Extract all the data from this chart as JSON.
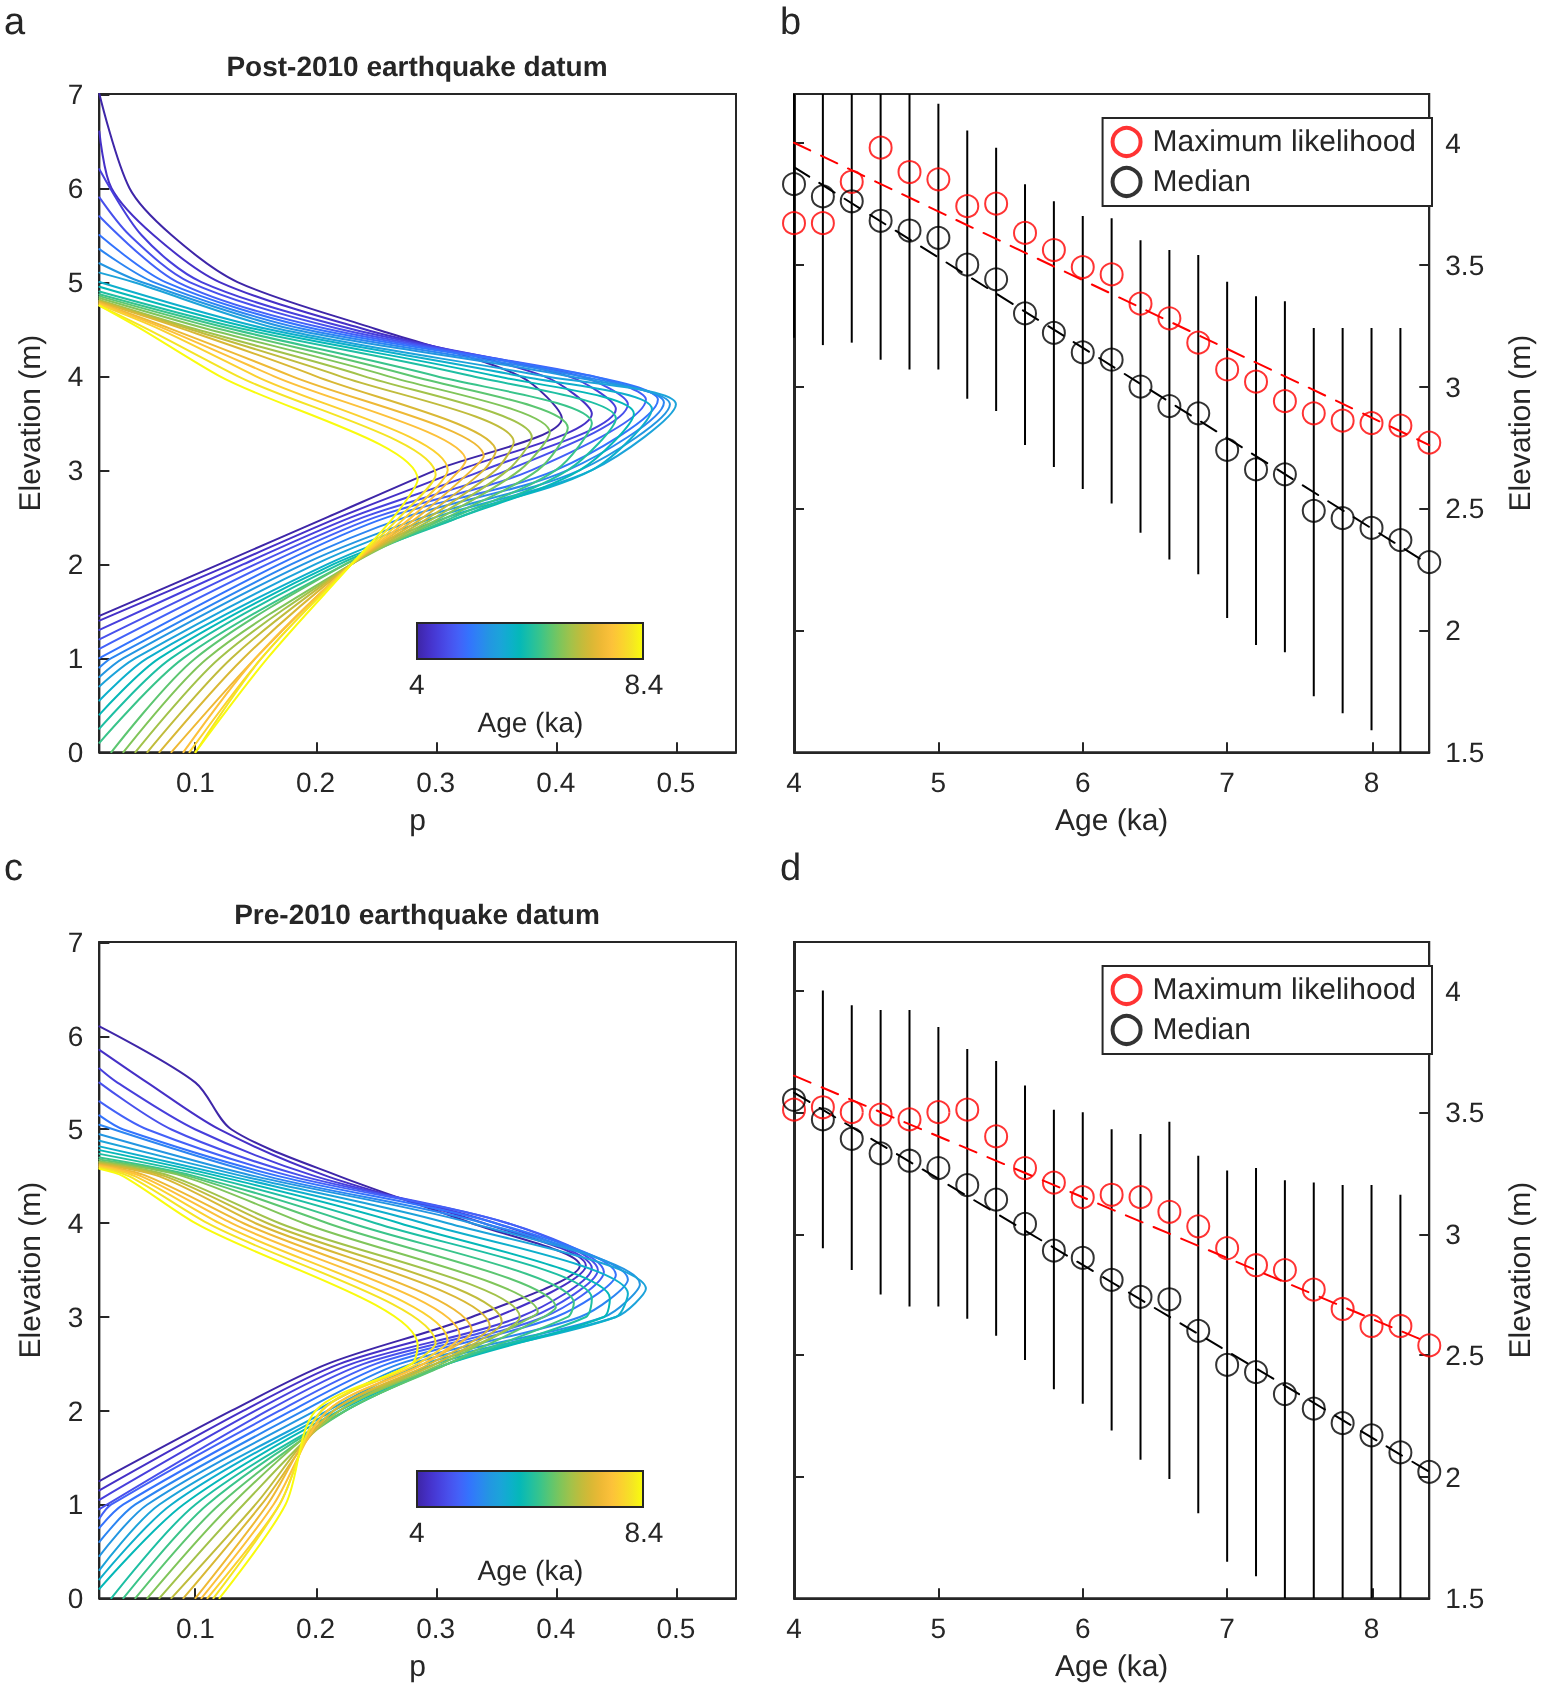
{
  "chart_data": [
    {
      "type": "line",
      "title": "Post-2010 earthquake datum",
      "annotations": [
        "a",
        "4",
        "8.4"
      ],
      "xlabel": "p",
      "ylabel": "Elevation (m)",
      "xlim": [
        0.02,
        0.55
      ],
      "xticks": [
        0.1,
        0.2,
        0.3,
        0.4,
        0.5
      ],
      "ylim": [
        0,
        7
      ],
      "yticks": [
        0,
        1,
        2,
        3,
        4,
        5,
        6,
        7
      ],
      "clabel": "Age (ka)",
      "series": [
        {
          "color": "#3e26a8",
          "x": [
            0.02,
            0.045,
            0.08,
            0.135,
            0.25,
            0.37,
            0.405,
            0.3,
            0.21,
            0.12,
            0.02
          ],
          "values": [
            7,
            6,
            5.5,
            5,
            4.5,
            4,
            3.55,
            3,
            2.5,
            2,
            1.45
          ]
        },
        {
          "color": "#4530c7",
          "x": [
            0.02,
            0.03,
            0.065,
            0.12,
            0.24,
            0.39,
            0.43,
            0.32,
            0.22,
            0.13,
            0.02
          ],
          "values": [
            6.6,
            6,
            5.5,
            5,
            4.5,
            4,
            3.6,
            3,
            2.5,
            2,
            1.4
          ]
        },
        {
          "color": "#473fdc",
          "x": [
            0.02,
            0.055,
            0.105,
            0.23,
            0.41,
            0.45,
            0.34,
            0.23,
            0.14,
            0.02
          ],
          "values": [
            6.2,
            5.5,
            5,
            4.5,
            4,
            3.65,
            3,
            2.5,
            2,
            1.3
          ]
        },
        {
          "color": "#4850ec",
          "x": [
            0.02,
            0.045,
            0.095,
            0.22,
            0.42,
            0.46,
            0.36,
            0.24,
            0.15,
            0.02
          ],
          "values": [
            5.9,
            5.5,
            5,
            4.5,
            4,
            3.7,
            3,
            2.5,
            2,
            1.2
          ]
        },
        {
          "color": "#4361f8",
          "x": [
            0.02,
            0.085,
            0.21,
            0.43,
            0.475,
            0.38,
            0.25,
            0.16,
            0.02
          ],
          "values": [
            5.7,
            5,
            4.5,
            4,
            3.75,
            3,
            2.5,
            2,
            1.1
          ]
        },
        {
          "color": "#3473fd",
          "x": [
            0.02,
            0.075,
            0.2,
            0.43,
            0.485,
            0.4,
            0.26,
            0.17,
            0.02
          ],
          "values": [
            5.5,
            5,
            4.5,
            4,
            3.75,
            3,
            2.5,
            2,
            1.0
          ]
        },
        {
          "color": "#2c85f2",
          "x": [
            0.02,
            0.065,
            0.19,
            0.42,
            0.49,
            0.41,
            0.275,
            0.18,
            0.03,
            0.02
          ],
          "values": [
            5.35,
            5,
            4.5,
            4,
            3.72,
            3,
            2.5,
            2,
            1,
            0.9
          ]
        },
        {
          "color": "#2396e2",
          "x": [
            0.02,
            0.055,
            0.18,
            0.41,
            0.495,
            0.42,
            0.29,
            0.19,
            0.04,
            0.02
          ],
          "values": [
            5.2,
            5,
            4.5,
            4,
            3.7,
            3,
            2.5,
            2,
            1,
            0.8
          ]
        },
        {
          "color": "#1ca3da",
          "x": [
            0.02,
            0.048,
            0.17,
            0.39,
            0.5,
            0.43,
            0.3,
            0.2,
            0.05,
            0.02
          ],
          "values": [
            5.1,
            5,
            4.5,
            4,
            3.7,
            3,
            2.5,
            2,
            1,
            0.7
          ]
        },
        {
          "color": "#0eafcc",
          "x": [
            0.02,
            0.16,
            0.37,
            0.48,
            0.43,
            0.31,
            0.21,
            0.06,
            0.02
          ],
          "values": [
            5.0,
            4.5,
            4,
            3.65,
            3,
            2.5,
            2,
            1,
            0.55
          ]
        },
        {
          "color": "#05b8b8",
          "x": [
            0.02,
            0.15,
            0.35,
            0.465,
            0.42,
            0.32,
            0.215,
            0.07,
            0.02
          ],
          "values": [
            4.95,
            4.5,
            4,
            3.6,
            3,
            2.5,
            2,
            1,
            0.4
          ]
        },
        {
          "color": "#1ebfa3",
          "x": [
            0.02,
            0.14,
            0.33,
            0.45,
            0.41,
            0.32,
            0.22,
            0.08,
            0.02
          ],
          "values": [
            4.9,
            4.5,
            4,
            3.55,
            3,
            2.5,
            2,
            1,
            0.25
          ]
        },
        {
          "color": "#39c48b",
          "x": [
            0.02,
            0.13,
            0.3,
            0.43,
            0.4,
            0.315,
            0.225,
            0.09,
            0.02
          ],
          "values": [
            4.87,
            4.5,
            4,
            3.5,
            3,
            2.5,
            2,
            1,
            0.1
          ]
        },
        {
          "color": "#5cc671",
          "x": [
            0.02,
            0.12,
            0.28,
            0.41,
            0.385,
            0.31,
            0.225,
            0.1,
            0.03
          ],
          "values": [
            4.85,
            4.5,
            4,
            3.45,
            3,
            2.5,
            2,
            1,
            0
          ]
        },
        {
          "color": "#80c55a",
          "x": [
            0.02,
            0.11,
            0.26,
            0.395,
            0.37,
            0.305,
            0.23,
            0.11,
            0.04
          ],
          "values": [
            4.83,
            4.5,
            4,
            3.4,
            3,
            2.5,
            2,
            1,
            0
          ]
        },
        {
          "color": "#a2c24a",
          "x": [
            0.02,
            0.1,
            0.24,
            0.38,
            0.36,
            0.3,
            0.23,
            0.12,
            0.05
          ],
          "values": [
            4.81,
            4.5,
            4,
            3.35,
            3,
            2.5,
            2,
            1,
            0
          ]
        },
        {
          "color": "#c0bc3c",
          "x": [
            0.02,
            0.095,
            0.22,
            0.365,
            0.35,
            0.295,
            0.23,
            0.13,
            0.06
          ],
          "values": [
            4.8,
            4.5,
            4,
            3.3,
            3,
            2.5,
            2,
            1,
            0
          ]
        },
        {
          "color": "#d9b835",
          "x": [
            0.02,
            0.09,
            0.2,
            0.35,
            0.34,
            0.29,
            0.23,
            0.14,
            0.07
          ],
          "values": [
            4.79,
            4.5,
            4,
            3.2,
            3,
            2.5,
            2,
            1,
            0
          ]
        },
        {
          "color": "#eeb935",
          "x": [
            0.02,
            0.08,
            0.18,
            0.34,
            0.33,
            0.285,
            0.23,
            0.15,
            0.08
          ],
          "values": [
            4.78,
            4.5,
            4,
            3.15,
            3,
            2.5,
            2,
            1,
            0
          ]
        },
        {
          "color": "#fcc13a",
          "x": [
            0.02,
            0.075,
            0.165,
            0.325,
            0.32,
            0.28,
            0.23,
            0.15,
            0.09
          ],
          "values": [
            4.77,
            4.5,
            4,
            3.1,
            3,
            2.5,
            2,
            1,
            0
          ]
        },
        {
          "color": "#fbd12f",
          "x": [
            0.02,
            0.07,
            0.15,
            0.31,
            0.275,
            0.23,
            0.155,
            0.095
          ],
          "values": [
            4.76,
            4.5,
            4,
            3.0,
            2.5,
            2,
            1,
            0
          ]
        },
        {
          "color": "#f5e424",
          "x": [
            0.02,
            0.06,
            0.135,
            0.3,
            0.27,
            0.23,
            0.155,
            0.1
          ],
          "values": [
            4.75,
            4.5,
            4,
            2.95,
            2.5,
            2,
            1,
            0
          ]
        },
        {
          "color": "#f9fb0e",
          "x": [
            0.02,
            0.055,
            0.12,
            0.285,
            0.265,
            0.23,
            0.16,
            0.1
          ],
          "values": [
            4.75,
            4.5,
            4,
            2.9,
            2.5,
            2,
            1,
            0
          ]
        }
      ]
    },
    {
      "type": "scatter",
      "annotations": [
        "b"
      ],
      "xlabel": "Age (ka)",
      "y2label": "Elevation (m)",
      "x": [
        4,
        4.2,
        4.4,
        4.6,
        4.8,
        5,
        5.2,
        5.4,
        5.6,
        5.8,
        6,
        6.2,
        6.4,
        6.6,
        6.8,
        7,
        7.2,
        7.4,
        7.6,
        7.8,
        8,
        8.2,
        8.4
      ],
      "xlim": [
        4,
        8.4
      ],
      "xticks": [
        4,
        5,
        6,
        7,
        8
      ],
      "y2lim": [
        1.5,
        4.2
      ],
      "y2ticks": [
        1.5,
        2,
        2.5,
        3,
        3.5,
        4
      ],
      "marker": "circle",
      "legend": "top right",
      "series": [
        {
          "name": "Maximum likelihood",
          "color": "#ff0000",
          "axis": "y2",
          "values": [
            3.67,
            3.67,
            3.84,
            3.98,
            3.88,
            3.85,
            3.74,
            3.75,
            3.63,
            3.56,
            3.49,
            3.46,
            3.34,
            3.28,
            3.18,
            3.07,
            3.02,
            2.94,
            2.89,
            2.86,
            2.85,
            2.84,
            2.77
          ]
        },
        {
          "name": "Median",
          "color": "#000000",
          "axis": "y2",
          "values": [
            3.83,
            3.78,
            3.76,
            3.68,
            3.64,
            3.61,
            3.5,
            3.44,
            3.3,
            3.22,
            3.14,
            3.11,
            3.0,
            2.92,
            2.89,
            2.74,
            2.66,
            2.64,
            2.49,
            2.46,
            2.42,
            2.37,
            2.28
          ],
          "errors": [
            [
              3.2,
              4.2
            ],
            [
              3.17,
              4.2
            ],
            [
              3.18,
              4.2
            ],
            [
              3.11,
              4.2
            ],
            [
              3.07,
              4.2
            ],
            [
              3.07,
              4.16
            ],
            [
              2.95,
              4.05
            ],
            [
              2.9,
              3.98
            ],
            [
              2.76,
              3.83
            ],
            [
              2.67,
              3.76
            ],
            [
              2.58,
              3.7
            ],
            [
              2.52,
              3.69
            ],
            [
              2.4,
              3.6
            ],
            [
              2.29,
              3.56
            ],
            [
              2.23,
              3.54
            ],
            [
              2.05,
              3.43
            ],
            [
              1.94,
              3.37
            ],
            [
              1.91,
              3.35
            ],
            [
              1.73,
              3.24
            ],
            [
              1.66,
              3.24
            ],
            [
              1.59,
              3.24
            ],
            [
              1.5,
              3.24
            ],
            null
          ]
        },
        {
          "type": "line",
          "axis": "y2",
          "color": "#ff0000",
          "line_style": "dashed",
          "marker": "none",
          "x": [
            4,
            8.4
          ],
          "values": [
            4.0,
            2.76
          ]
        },
        {
          "type": "line",
          "axis": "y2",
          "color": "#000000",
          "line_style": "dashed",
          "marker": "none",
          "x": [
            4,
            8.4
          ],
          "values": [
            3.9,
            2.27
          ]
        }
      ]
    },
    {
      "type": "line",
      "title": "Pre-2010 earthquake datum",
      "annotations": [
        "c",
        "4",
        "8.4"
      ],
      "xlabel": "p",
      "ylabel": "Elevation (m)",
      "xlim": [
        0.02,
        0.55
      ],
      "xticks": [
        0.1,
        0.2,
        0.3,
        0.4,
        0.5
      ],
      "ylim": [
        0,
        7
      ],
      "yticks": [
        0,
        1,
        2,
        3,
        4,
        5,
        6,
        7
      ],
      "clabel": "Age (ka)",
      "series": [
        {
          "color": "#3e26a8",
          "x": [
            0.02,
            0.1,
            0.13,
            0.22,
            0.33,
            0.42,
            0.33,
            0.21,
            0.13,
            0.02
          ],
          "values": [
            6.1,
            5.5,
            5,
            4.5,
            4,
            3.55,
            3,
            2.5,
            2,
            1.25
          ]
        },
        {
          "color": "#4530c7",
          "x": [
            0.02,
            0.06,
            0.12,
            0.21,
            0.34,
            0.425,
            0.35,
            0.22,
            0.14,
            0.02
          ],
          "values": [
            5.85,
            5.5,
            5,
            4.5,
            4,
            3.55,
            3,
            2.5,
            2,
            1.15
          ]
        },
        {
          "color": "#473fdc",
          "x": [
            0.02,
            0.035,
            0.1,
            0.2,
            0.35,
            0.43,
            0.37,
            0.23,
            0.15,
            0.02
          ],
          "values": [
            5.65,
            5.5,
            5,
            4.5,
            4,
            3.52,
            3,
            2.5,
            2,
            1.05
          ]
        },
        {
          "color": "#4850ec",
          "x": [
            0.02,
            0.08,
            0.19,
            0.36,
            0.435,
            0.38,
            0.24,
            0.16,
            0.02
          ],
          "values": [
            5.5,
            5,
            4.5,
            4,
            3.5,
            3,
            2.5,
            2,
            0.95
          ]
        },
        {
          "color": "#4361f8",
          "x": [
            0.02,
            0.06,
            0.18,
            0.36,
            0.44,
            0.39,
            0.25,
            0.17,
            0.03,
            0.02
          ],
          "values": [
            5.3,
            5,
            4.5,
            4,
            3.48,
            3,
            2.5,
            2,
            1,
            0.85
          ]
        },
        {
          "color": "#3473fd",
          "x": [
            0.02,
            0.04,
            0.17,
            0.35,
            0.45,
            0.4,
            0.26,
            0.18,
            0.04,
            0.02
          ],
          "values": [
            5.15,
            5,
            4.5,
            4,
            3.45,
            3,
            2.5,
            2,
            1,
            0.75
          ]
        },
        {
          "color": "#2c85f2",
          "x": [
            0.02,
            0.16,
            0.34,
            0.46,
            0.42,
            0.27,
            0.19,
            0.05,
            0.02
          ],
          "values": [
            5.05,
            4.5,
            4,
            3.4,
            3,
            2.5,
            2,
            1,
            0.6
          ]
        },
        {
          "color": "#2396e2",
          "x": [
            0.02,
            0.15,
            0.33,
            0.47,
            0.44,
            0.28,
            0.2,
            0.06,
            0.02
          ],
          "values": [
            4.95,
            4.5,
            4,
            3.35,
            3,
            2.5,
            2,
            1,
            0.45
          ]
        },
        {
          "color": "#1ca3da",
          "x": [
            0.02,
            0.14,
            0.31,
            0.475,
            0.45,
            0.29,
            0.21,
            0.07,
            0.02
          ],
          "values": [
            4.88,
            4.5,
            4,
            3.3,
            3,
            2.5,
            2,
            1,
            0.3
          ]
        },
        {
          "color": "#0eafcc",
          "x": [
            0.02,
            0.13,
            0.29,
            0.46,
            0.45,
            0.3,
            0.215,
            0.08,
            0.02
          ],
          "values": [
            4.82,
            4.5,
            4,
            3.25,
            3,
            2.5,
            2,
            1,
            0.2
          ]
        },
        {
          "color": "#05b8b8",
          "x": [
            0.02,
            0.12,
            0.27,
            0.445,
            0.44,
            0.31,
            0.22,
            0.09,
            0.02
          ],
          "values": [
            4.78,
            4.5,
            4,
            3.2,
            3,
            2.5,
            2,
            1,
            0.1
          ]
        },
        {
          "color": "#1ebfa3",
          "x": [
            0.02,
            0.11,
            0.25,
            0.43,
            0.425,
            0.31,
            0.225,
            0.1,
            0.03
          ],
          "values": [
            4.74,
            4.5,
            4,
            3.2,
            3,
            2.5,
            2,
            1,
            0
          ]
        },
        {
          "color": "#39c48b",
          "x": [
            0.02,
            0.1,
            0.23,
            0.415,
            0.41,
            0.31,
            0.225,
            0.11,
            0.04
          ],
          "values": [
            4.7,
            4.5,
            4,
            3.15,
            3,
            2.5,
            2,
            1,
            0
          ]
        },
        {
          "color": "#5cc671",
          "x": [
            0.02,
            0.095,
            0.21,
            0.4,
            0.39,
            0.31,
            0.225,
            0.12,
            0.05
          ],
          "values": [
            4.68,
            4.5,
            4,
            3.1,
            3,
            2.5,
            2,
            1,
            0
          ]
        },
        {
          "color": "#80c55a",
          "x": [
            0.02,
            0.09,
            0.19,
            0.385,
            0.38,
            0.305,
            0.22,
            0.13,
            0.06
          ],
          "values": [
            4.66,
            4.5,
            4,
            3.05,
            3,
            2.5,
            2,
            1,
            0
          ]
        },
        {
          "color": "#a2c24a",
          "x": [
            0.02,
            0.08,
            0.17,
            0.37,
            0.3,
            0.22,
            0.14,
            0.07
          ],
          "values": [
            4.65,
            4.5,
            4,
            3.0,
            2.5,
            2,
            1,
            0
          ]
        },
        {
          "color": "#c0bc3c",
          "x": [
            0.02,
            0.075,
            0.16,
            0.355,
            0.3,
            0.215,
            0.15,
            0.08
          ],
          "values": [
            4.64,
            4.5,
            4,
            2.95,
            2.5,
            2,
            1,
            0
          ]
        },
        {
          "color": "#d9b835",
          "x": [
            0.02,
            0.07,
            0.15,
            0.345,
            0.295,
            0.215,
            0.155,
            0.09
          ],
          "values": [
            4.63,
            4.5,
            4,
            2.9,
            2.5,
            2,
            1,
            0
          ]
        },
        {
          "color": "#eeb935",
          "x": [
            0.02,
            0.06,
            0.14,
            0.33,
            0.29,
            0.21,
            0.16,
            0.1
          ],
          "values": [
            4.62,
            4.5,
            4,
            2.85,
            2.5,
            2,
            1,
            0
          ]
        },
        {
          "color": "#fcc13a",
          "x": [
            0.02,
            0.055,
            0.13,
            0.32,
            0.29,
            0.21,
            0.165,
            0.105
          ],
          "values": [
            4.61,
            4.5,
            4,
            2.8,
            2.5,
            2,
            1,
            0
          ]
        },
        {
          "color": "#fbd12f",
          "x": [
            0.02,
            0.05,
            0.12,
            0.31,
            0.285,
            0.205,
            0.17,
            0.11
          ],
          "values": [
            4.6,
            4.5,
            4,
            2.75,
            2.5,
            2,
            1,
            0
          ]
        },
        {
          "color": "#f5e424",
          "x": [
            0.02,
            0.045,
            0.11,
            0.3,
            0.28,
            0.205,
            0.17,
            0.115
          ],
          "values": [
            4.59,
            4.5,
            4,
            2.72,
            2.5,
            2,
            1,
            0
          ]
        },
        {
          "color": "#f9fb0e",
          "x": [
            0.02,
            0.04,
            0.1,
            0.285,
            0.28,
            0.2,
            0.175,
            0.12
          ],
          "values": [
            4.58,
            4.5,
            4,
            2.7,
            2.5,
            2,
            1,
            0
          ]
        }
      ]
    },
    {
      "type": "scatter",
      "annotations": [
        "d"
      ],
      "xlabel": "Age (ka)",
      "y2label": "Elevation (m)",
      "x": [
        4,
        4.2,
        4.4,
        4.6,
        4.8,
        5,
        5.2,
        5.4,
        5.6,
        5.8,
        6,
        6.2,
        6.4,
        6.6,
        6.8,
        7,
        7.2,
        7.4,
        7.6,
        7.8,
        8,
        8.2,
        8.4
      ],
      "xlim": [
        4,
        8.4
      ],
      "xticks": [
        4,
        5,
        6,
        7,
        8
      ],
      "y2lim": [
        1.5,
        4.2
      ],
      "y2ticks": [
        1.5,
        2,
        2.5,
        3,
        3.5,
        4
      ],
      "marker": "circle",
      "legend": "top right",
      "series": [
        {
          "name": "Maximum likelihood",
          "color": "#ff0000",
          "axis": "y2",
          "values": [
            3.51,
            3.52,
            3.5,
            3.49,
            3.47,
            3.5,
            3.51,
            3.4,
            3.27,
            3.21,
            3.15,
            3.16,
            3.15,
            3.09,
            3.03,
            2.94,
            2.87,
            2.85,
            2.77,
            2.69,
            2.62,
            2.62,
            2.54
          ]
        },
        {
          "name": "Median",
          "color": "#000000",
          "axis": "y2",
          "values": [
            3.55,
            3.47,
            3.39,
            3.33,
            3.3,
            3.27,
            3.2,
            3.14,
            3.04,
            2.93,
            2.9,
            2.81,
            2.74,
            2.73,
            2.6,
            2.46,
            2.43,
            2.34,
            2.28,
            2.22,
            2.17,
            2.1,
            2.02
          ],
          "errors": [
            null,
            [
              2.94,
              4.0
            ],
            [
              2.85,
              3.94
            ],
            [
              2.75,
              3.92
            ],
            [
              2.7,
              3.92
            ],
            [
              2.7,
              3.85
            ],
            [
              2.65,
              3.76
            ],
            [
              2.58,
              3.71
            ],
            [
              2.48,
              3.61
            ],
            [
              2.36,
              3.51
            ],
            [
              2.3,
              3.5
            ],
            [
              2.19,
              3.43
            ],
            [
              2.07,
              3.41
            ],
            [
              1.99,
              3.46
            ],
            [
              1.85,
              3.32
            ],
            [
              1.65,
              3.26
            ],
            [
              1.59,
              3.27
            ],
            [
              1.5,
              3.22
            ],
            [
              1.5,
              3.21
            ],
            [
              1.5,
              3.2
            ],
            [
              1.5,
              3.2
            ],
            [
              1.5,
              3.16
            ],
            null
          ]
        },
        {
          "type": "line",
          "axis": "y2",
          "color": "#ff0000",
          "line_style": "dashed",
          "marker": "none",
          "x": [
            4,
            8.4
          ],
          "values": [
            3.65,
            2.55
          ]
        },
        {
          "type": "line",
          "axis": "y2",
          "color": "#000000",
          "line_style": "dashed",
          "marker": "none",
          "x": [
            4,
            8.4
          ],
          "values": [
            3.58,
            2.02
          ]
        }
      ]
    }
  ]
}
